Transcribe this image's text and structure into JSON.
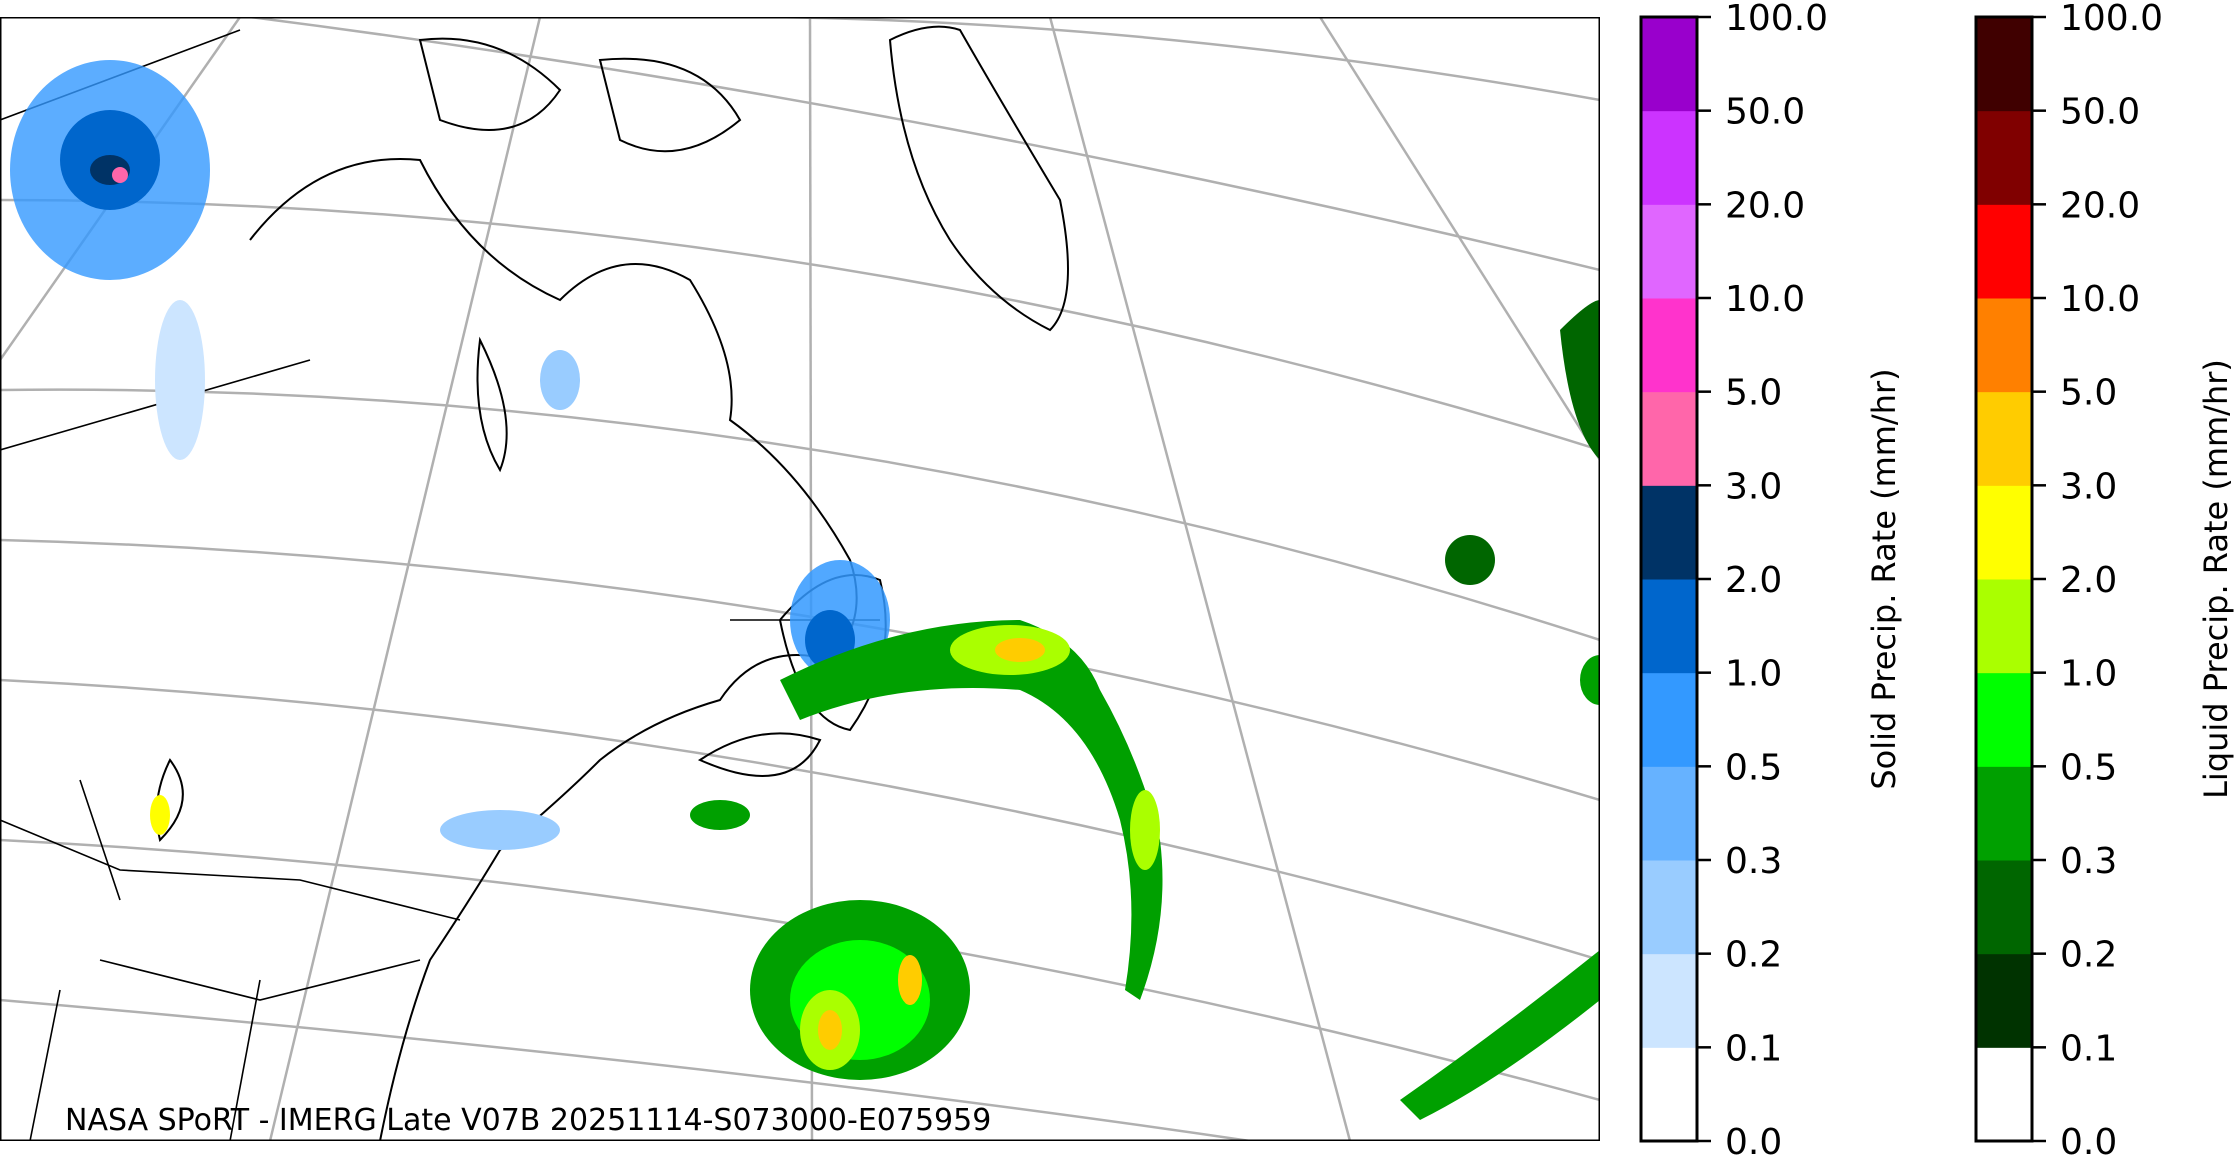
{
  "map": {
    "credit": "NASA SPoRT - IMERG Late V07B 20251114-S073000-E075959",
    "graticule_color": "#b0b0b0"
  },
  "colorbars": [
    {
      "label": "Solid Precip. Rate (mm/hr)",
      "ticks": [
        "0.0",
        "0.1",
        "0.2",
        "0.3",
        "0.5",
        "1.0",
        "2.0",
        "3.0",
        "5.0",
        "10.0",
        "20.0",
        "50.0",
        "100.0"
      ],
      "colors": [
        "#ffffff",
        "#cce5ff",
        "#99ccff",
        "#66b2ff",
        "#3399ff",
        "#0066cc",
        "#003366",
        "#ff66aa",
        "#ff33cc",
        "#e066ff",
        "#cc33ff",
        "#9900cc"
      ]
    },
    {
      "label": "Liquid Precip. Rate (mm/hr)",
      "ticks": [
        "0.0",
        "0.1",
        "0.2",
        "0.3",
        "0.5",
        "1.0",
        "2.0",
        "3.0",
        "5.0",
        "10.0",
        "20.0",
        "50.0",
        "100.0"
      ],
      "colors": [
        "#ffffff",
        "#003300",
        "#006600",
        "#00a000",
        "#00ff00",
        "#aaff00",
        "#ffff00",
        "#ffcc00",
        "#ff8000",
        "#ff0000",
        "#800000",
        "#400000"
      ]
    }
  ]
}
